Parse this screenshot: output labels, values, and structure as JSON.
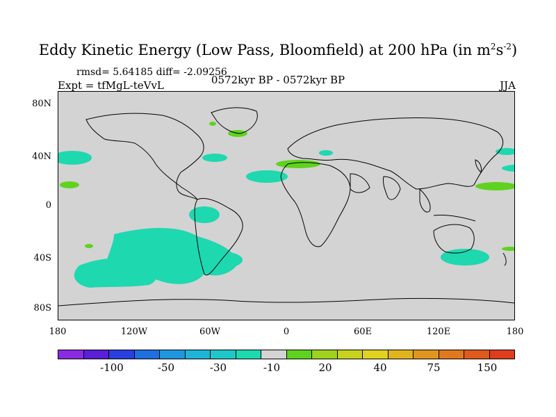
{
  "title": {
    "main": "Eddy Kinetic Energy (Low Pass, Bloomfield) at 200 hPa (in m",
    "sup1": "2",
    "mid": "s",
    "sup2": "-2",
    "end": ")"
  },
  "stats": "rmsd= 5.64185 diff= -2.09256",
  "expt": "Expt = tfMgL-teVvL",
  "period": "0572kyr BP - 0572kyr BP",
  "season": "JJA",
  "lat_ticks": [
    "80N",
    "40N",
    "0",
    "40S",
    "80S"
  ],
  "lon_ticks": [
    "180",
    "120W",
    "60W",
    "0",
    "60E",
    "120E",
    "180"
  ],
  "colorbar": {
    "colors": [
      "#8a2be2",
      "#5a1fd6",
      "#2a3fe0",
      "#1e6fe0",
      "#1f96e0",
      "#1eb4d8",
      "#1ec8c8",
      "#1ed8b0",
      "#d3d3d3",
      "#5fd21e",
      "#9ed21e",
      "#c8d21e",
      "#e0d21e",
      "#e0b41e",
      "#e0961e",
      "#e0781e",
      "#e05a1e",
      "#e03c1e"
    ],
    "labels": [
      "-100",
      "-50",
      "-30",
      "-10",
      "20",
      "40",
      "75",
      "150"
    ]
  }
}
